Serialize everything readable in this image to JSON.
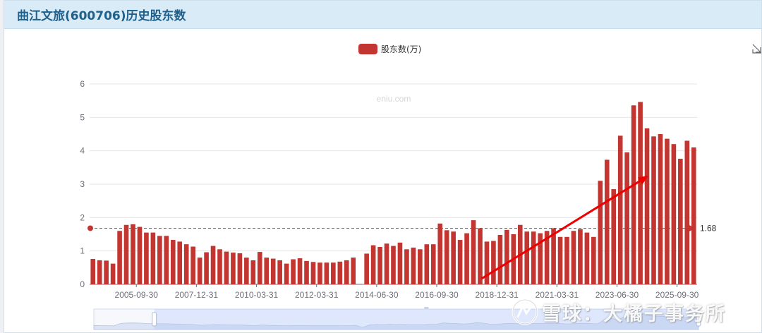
{
  "panel": {
    "title": "曲江文旅(600706)历史股东数"
  },
  "chart_data": {
    "type": "bar",
    "title": "",
    "legend": [
      "股东数(万)"
    ],
    "legend_position": "top-center",
    "watermark_center": "eniu.com",
    "y_ticks": [
      0,
      1,
      2,
      3,
      4,
      5,
      6
    ],
    "ylim": [
      0,
      6
    ],
    "grid": true,
    "x_tick_labels": [
      "2005-09-30",
      "2007-12-31",
      "2010-03-31",
      "2012-03-31",
      "2014-06-30",
      "2016-09-30",
      "2018-12-31",
      "2021-03-31",
      "2023-06-30",
      "2025-09-30"
    ],
    "x_tick_positions": [
      7,
      16,
      25,
      34,
      43,
      52,
      61,
      70,
      79,
      88
    ],
    "series": [
      {
        "name": "股东数(万)",
        "color": "#c23531",
        "values": [
          0.76,
          0.72,
          0.71,
          0.62,
          1.6,
          1.78,
          1.8,
          1.72,
          1.55,
          1.55,
          1.45,
          1.45,
          1.33,
          1.28,
          1.2,
          1.13,
          0.8,
          0.96,
          1.15,
          1.05,
          0.98,
          0.95,
          0.93,
          0.8,
          0.72,
          0.97,
          0.8,
          0.77,
          0.72,
          0.62,
          0.75,
          0.78,
          0.7,
          0.67,
          0.65,
          0.65,
          0.65,
          0.68,
          0.72,
          0.8,
          null,
          0.92,
          1.17,
          1.12,
          1.22,
          1.15,
          1.25,
          1.05,
          1.1,
          1.05,
          1.2,
          1.2,
          1.82,
          1.62,
          1.58,
          1.33,
          1.53,
          1.92,
          1.68,
          1.28,
          1.3,
          1.48,
          1.63,
          1.5,
          1.78,
          1.58,
          1.58,
          1.53,
          1.6,
          1.68,
          1.42,
          1.42,
          1.6,
          1.65,
          1.55,
          1.42,
          3.1,
          3.73,
          2.85,
          4.45,
          3.95,
          5.36,
          5.46,
          4.67,
          4.43,
          4.5,
          4.36,
          4.2,
          3.76,
          4.3,
          4.1
        ]
      }
    ],
    "mark_line": {
      "type": "average",
      "value": 1.68,
      "label": "1.68",
      "style": "dashed",
      "color": "#c23531"
    },
    "annotation_arrow": {
      "color": "#ee0000",
      "from_index": 58,
      "to_index": 83
    },
    "data_zoom": {
      "start": 10,
      "end": 100
    }
  },
  "watermark": {
    "text": "雪球：大橘子事务所"
  },
  "icons": {
    "restore": "restore-icon",
    "watermark_logo": "snowball-logo-icon"
  }
}
